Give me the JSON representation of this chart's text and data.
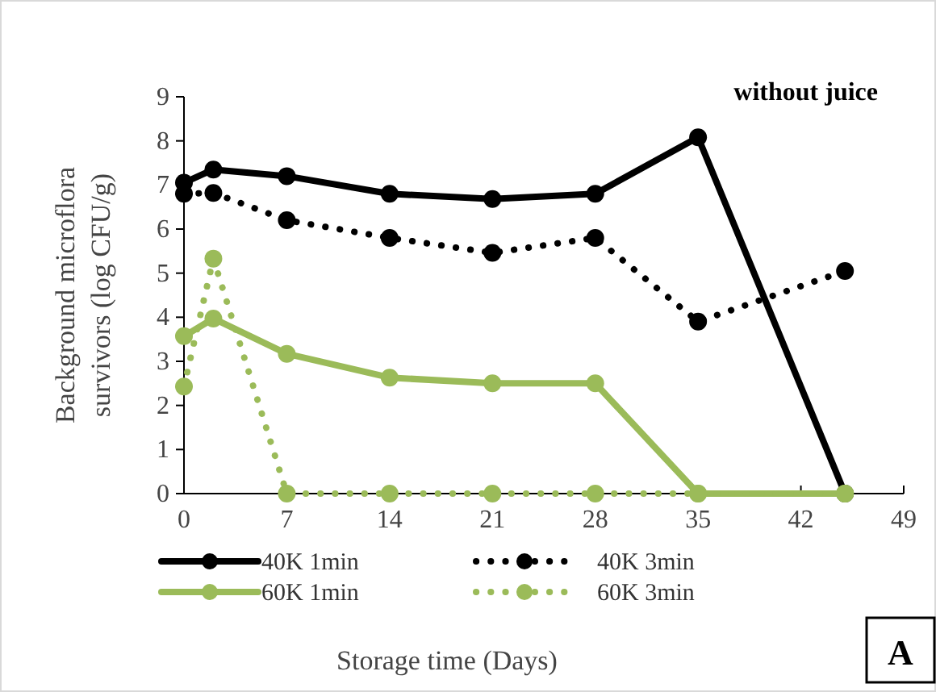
{
  "chart_data": {
    "type": "line",
    "xlabel": "Storage time (Days)",
    "ylabel": "Background microflora survivors (log CFU/g)",
    "annotations": [
      "without juice",
      "A"
    ],
    "xlim": [
      0,
      49
    ],
    "xticks": [
      0,
      7,
      14,
      21,
      28,
      35,
      42,
      49
    ],
    "ylim": [
      0,
      9
    ],
    "yticks": [
      0,
      1,
      2,
      3,
      4,
      5,
      6,
      7,
      8,
      9
    ],
    "grid": false,
    "legend": "bottom",
    "marker": "circle",
    "series": [
      {
        "name": "40K 1min",
        "color": "#000000",
        "line_style": "solid",
        "x": [
          0,
          2,
          7,
          14,
          21,
          28,
          35,
          45
        ],
        "values": [
          7.05,
          7.35,
          7.2,
          6.8,
          6.68,
          6.8,
          8.08,
          0
        ]
      },
      {
        "name": "40K 3min",
        "color": "#000000",
        "line_style": "dotted",
        "x": [
          0,
          2,
          7,
          14,
          21,
          28,
          35,
          45
        ],
        "values": [
          6.8,
          6.82,
          6.2,
          5.8,
          5.46,
          5.8,
          3.9,
          5.05
        ]
      },
      {
        "name": "60K 1min",
        "color": "#9bbb59",
        "line_style": "solid",
        "x": [
          0,
          2,
          7,
          14,
          21,
          28,
          35,
          45
        ],
        "values": [
          3.57,
          3.97,
          3.17,
          2.63,
          2.5,
          2.5,
          0,
          0
        ]
      },
      {
        "name": "60K 3min",
        "color": "#9bbb59",
        "line_style": "dotted",
        "x": [
          0,
          2,
          7,
          14,
          21,
          28,
          35,
          45
        ],
        "values": [
          2.43,
          5.33,
          0,
          0,
          0,
          0,
          0,
          0
        ]
      }
    ]
  }
}
